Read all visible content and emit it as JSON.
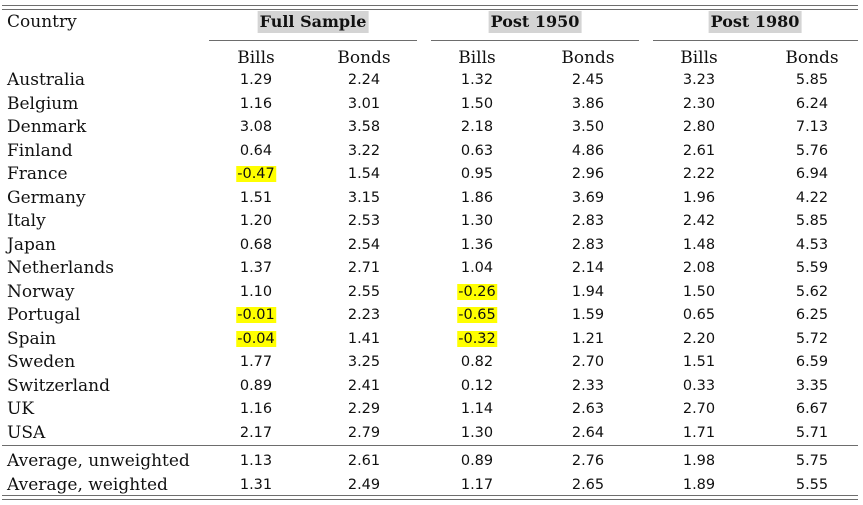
{
  "header": {
    "country_label": "Country",
    "groups": [
      "Full Sample",
      "Post 1950",
      "Post 1980"
    ],
    "subheaders": [
      "Bills",
      "Bonds",
      "Bills",
      "Bonds",
      "Bills",
      "Bonds"
    ]
  },
  "highlight_color": "#ffff00",
  "rows": [
    {
      "country": "Australia",
      "values": [
        "1.29",
        "2.24",
        "1.32",
        "2.45",
        "3.23",
        "5.85"
      ],
      "highlighted": []
    },
    {
      "country": "Belgium",
      "values": [
        "1.16",
        "3.01",
        "1.50",
        "3.86",
        "2.30",
        "6.24"
      ],
      "highlighted": []
    },
    {
      "country": "Denmark",
      "values": [
        "3.08",
        "3.58",
        "2.18",
        "3.50",
        "2.80",
        "7.13"
      ],
      "highlighted": []
    },
    {
      "country": "Finland",
      "values": [
        "0.64",
        "3.22",
        "0.63",
        "4.86",
        "2.61",
        "5.76"
      ],
      "highlighted": []
    },
    {
      "country": "France",
      "values": [
        "-0.47",
        "1.54",
        "0.95",
        "2.96",
        "2.22",
        "6.94"
      ],
      "highlighted": [
        0
      ]
    },
    {
      "country": "Germany",
      "values": [
        "1.51",
        "3.15",
        "1.86",
        "3.69",
        "1.96",
        "4.22"
      ],
      "highlighted": []
    },
    {
      "country": "Italy",
      "values": [
        "1.20",
        "2.53",
        "1.30",
        "2.83",
        "2.42",
        "5.85"
      ],
      "highlighted": []
    },
    {
      "country": "Japan",
      "values": [
        "0.68",
        "2.54",
        "1.36",
        "2.83",
        "1.48",
        "4.53"
      ],
      "highlighted": []
    },
    {
      "country": "Netherlands",
      "values": [
        "1.37",
        "2.71",
        "1.04",
        "2.14",
        "2.08",
        "5.59"
      ],
      "highlighted": []
    },
    {
      "country": "Norway",
      "values": [
        "1.10",
        "2.55",
        "-0.26",
        "1.94",
        "1.50",
        "5.62"
      ],
      "highlighted": [
        2
      ]
    },
    {
      "country": "Portugal",
      "values": [
        "-0.01",
        "2.23",
        "-0.65",
        "1.59",
        "0.65",
        "6.25"
      ],
      "highlighted": [
        0,
        2
      ]
    },
    {
      "country": "Spain",
      "values": [
        "-0.04",
        "1.41",
        "-0.32",
        "1.21",
        "2.20",
        "5.72"
      ],
      "highlighted": [
        0,
        2
      ]
    },
    {
      "country": "Sweden",
      "values": [
        "1.77",
        "3.25",
        "0.82",
        "2.70",
        "1.51",
        "6.59"
      ],
      "highlighted": []
    },
    {
      "country": "Switzerland",
      "values": [
        "0.89",
        "2.41",
        "0.12",
        "2.33",
        "0.33",
        "3.35"
      ],
      "highlighted": []
    },
    {
      "country": "UK",
      "values": [
        "1.16",
        "2.29",
        "1.14",
        "2.63",
        "2.70",
        "6.67"
      ],
      "highlighted": []
    },
    {
      "country": "USA",
      "values": [
        "2.17",
        "2.79",
        "1.30",
        "2.64",
        "1.71",
        "5.71"
      ],
      "highlighted": []
    }
  ],
  "averages": [
    {
      "country": "Average, unweighted",
      "values": [
        "1.13",
        "2.61",
        "0.89",
        "2.76",
        "1.98",
        "5.75"
      ],
      "highlighted": []
    },
    {
      "country": "Average, weighted",
      "values": [
        "1.31",
        "2.49",
        "1.17",
        "2.65",
        "1.89",
        "5.55"
      ],
      "highlighted": []
    }
  ]
}
